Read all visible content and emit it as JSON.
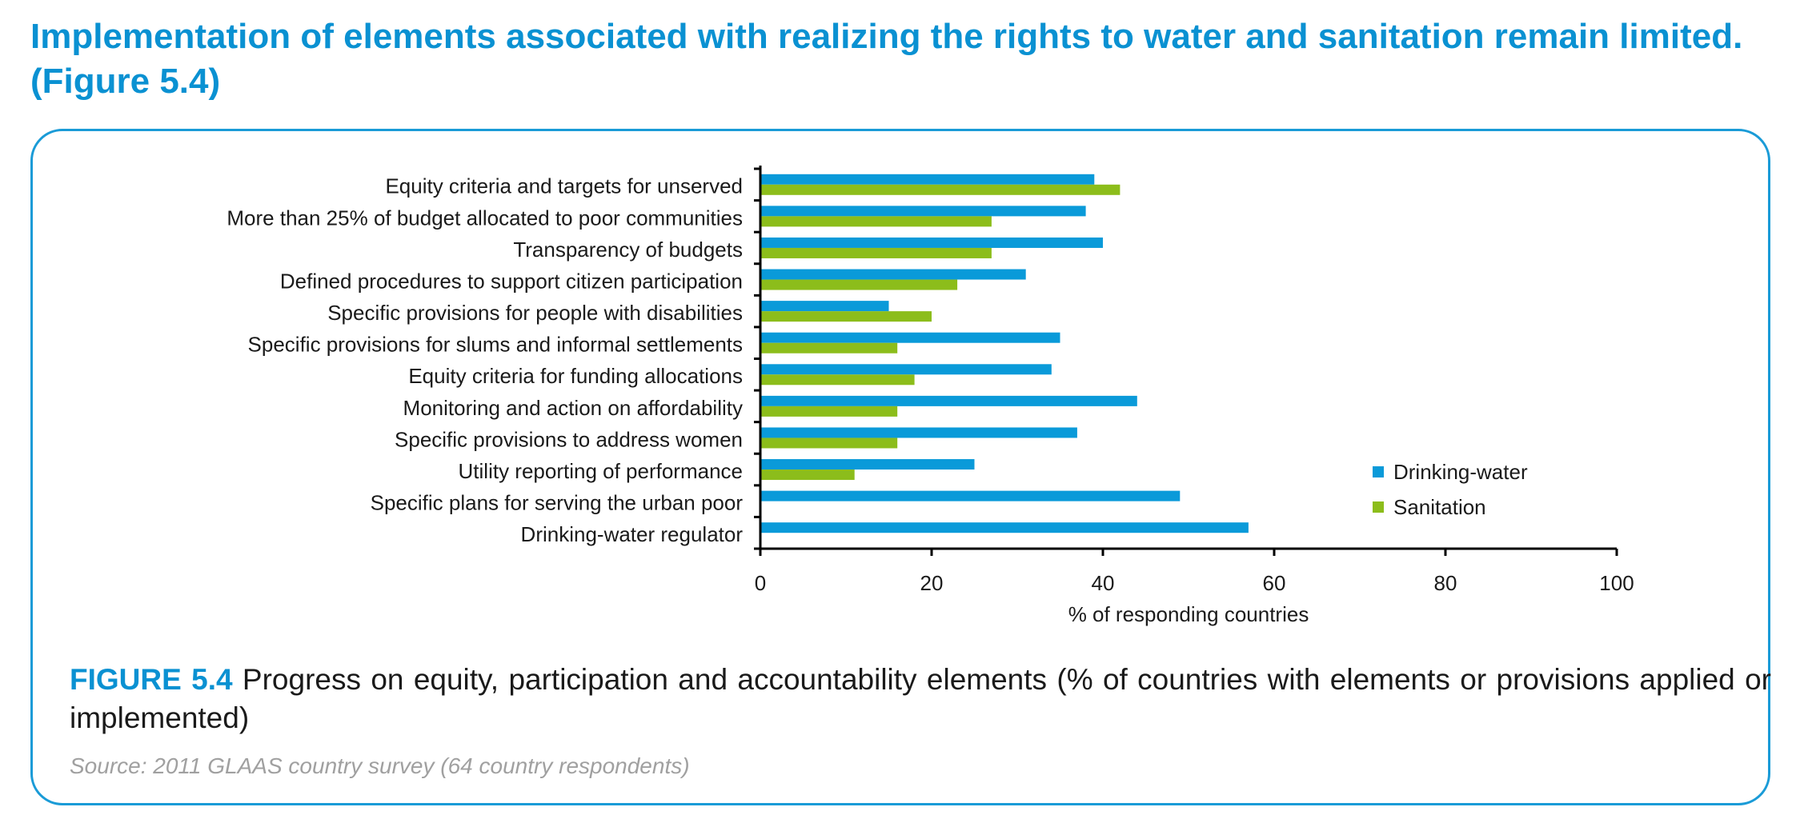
{
  "heading": "Implementation of elements associated with realizing the rights to water and sanitation remain limited. (Figure 5.4)",
  "caption": {
    "label": "FIGURE 5.4",
    "text": "Progress on equity, participation and accountability elements (% of countries with elements or provisions applied or implemented)"
  },
  "source": "Source: 2011 GLAAS country survey (64 country respondents)",
  "colors": {
    "drinking_water": "#0a9ad9",
    "sanitation": "#8cbd1b",
    "accent": "#0a91d2"
  },
  "chart_data": {
    "type": "bar",
    "orientation": "horizontal",
    "categories": [
      "Equity criteria and targets for unserved",
      "More than 25% of budget allocated to poor communities",
      "Transparency of budgets",
      "Defined procedures to support citizen participation",
      "Specific provisions for people with disabilities",
      "Specific provisions for slums and informal settlements",
      "Equity criteria for funding allocations",
      "Monitoring and action on affordability",
      "Specific provisions to address women",
      "Utility reporting of performance",
      "Specific plans for serving the urban poor",
      "Drinking-water regulator"
    ],
    "series": [
      {
        "name": "Drinking-water",
        "values": [
          39,
          38,
          40,
          31,
          15,
          35,
          34,
          44,
          37,
          25,
          49,
          57
        ]
      },
      {
        "name": "Sanitation",
        "values": [
          42,
          27,
          27,
          23,
          20,
          16,
          18,
          16,
          16,
          11,
          null,
          null
        ]
      }
    ],
    "title": "",
    "xlabel": "% of responding countries",
    "ylabel": "",
    "xlim": [
      0,
      100
    ],
    "xticks": [
      "0",
      "20",
      "40",
      "60",
      "80",
      "100"
    ],
    "grid": false,
    "legend": "lower-right"
  }
}
